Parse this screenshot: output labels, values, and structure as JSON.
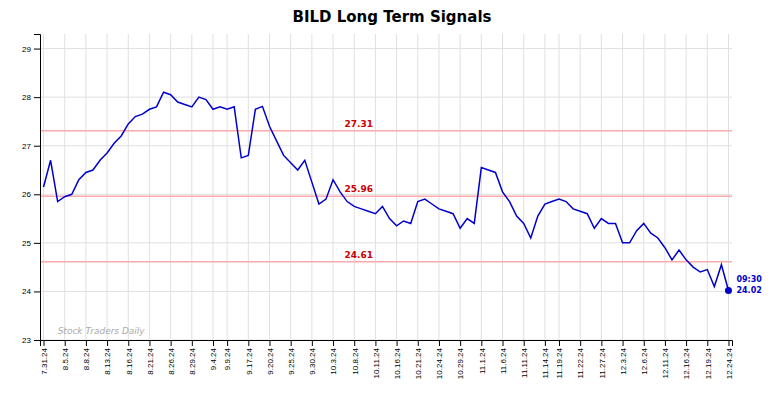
{
  "chart_data": {
    "type": "line",
    "title": "BILD Long Term Signals",
    "watermark": "Stock Traders Daily",
    "categories": [
      "7.31.24",
      null,
      null,
      "8.5.24",
      null,
      null,
      "8.8.24",
      null,
      null,
      "8.13.24",
      null,
      null,
      "8.16.24",
      null,
      null,
      "8.21.24",
      null,
      null,
      "8.26.24",
      null,
      null,
      "8.29.24",
      null,
      null,
      "9.4.24",
      null,
      "9.9.24",
      null,
      null,
      "9.17.24",
      null,
      null,
      "9.20.24",
      null,
      null,
      "9.25.24",
      null,
      null,
      "9.30.24",
      null,
      null,
      "10.3.24",
      null,
      null,
      "10.8.24",
      null,
      null,
      "10.11.24",
      null,
      null,
      "10.16.24",
      null,
      null,
      "10.21.24",
      null,
      null,
      "10.24.24",
      null,
      null,
      "10.29.24",
      null,
      null,
      "11.1.24",
      null,
      null,
      "11.6.24",
      null,
      null,
      "11.11.24",
      null,
      null,
      "11.14.24",
      null,
      "11.19.24",
      null,
      null,
      "11.22.24",
      null,
      null,
      "11.27.24",
      null,
      null,
      "12.3.24",
      null,
      null,
      "12.6.24",
      null,
      null,
      "12.11.24",
      null,
      null,
      "12.16.24",
      null,
      null,
      "12.19.24",
      null,
      null,
      "12.24.24"
    ],
    "values": [
      26.15,
      26.7,
      25.85,
      25.95,
      26.0,
      26.3,
      26.45,
      26.5,
      26.7,
      26.85,
      27.05,
      27.2,
      27.45,
      27.6,
      27.65,
      27.75,
      27.8,
      28.1,
      28.05,
      27.9,
      27.85,
      27.8,
      28.0,
      27.95,
      27.75,
      27.8,
      27.75,
      27.8,
      26.75,
      26.8,
      27.75,
      27.81,
      27.4,
      27.1,
      26.8,
      26.65,
      26.5,
      26.7,
      26.25,
      25.8,
      25.9,
      26.3,
      26.05,
      25.85,
      25.75,
      25.7,
      25.65,
      25.6,
      25.75,
      25.5,
      25.35,
      25.45,
      25.4,
      25.85,
      25.9,
      25.8,
      25.7,
      25.65,
      25.6,
      25.3,
      25.5,
      25.4,
      26.55,
      26.5,
      26.45,
      26.05,
      25.85,
      25.55,
      25.4,
      25.1,
      25.55,
      25.8,
      25.85,
      25.9,
      25.85,
      25.7,
      25.65,
      25.6,
      25.3,
      25.5,
      25.4,
      25.4,
      25.0,
      25.0,
      25.25,
      25.4,
      25.2,
      25.1,
      24.9,
      24.65,
      24.85,
      24.65,
      24.5,
      24.4,
      24.45,
      24.1,
      24.55,
      24.02
    ],
    "color": "#0000cc",
    "hlines": [
      {
        "value": 27.31,
        "label": "27.31",
        "color": "#ffaaaa",
        "label_color": "#cc0000"
      },
      {
        "value": 25.96,
        "label": "25.96",
        "color": "#ffaaaa",
        "label_color": "#cc0000"
      },
      {
        "value": 24.61,
        "label": "24.61",
        "color": "#ffaaaa",
        "label_color": "#cc0000"
      }
    ],
    "last_point": {
      "time": "09:30",
      "value": 24.02
    },
    "ylim": [
      23.0,
      29.3
    ],
    "yticks": [
      23,
      24,
      25,
      26,
      27,
      28,
      29
    ],
    "grid": true
  }
}
